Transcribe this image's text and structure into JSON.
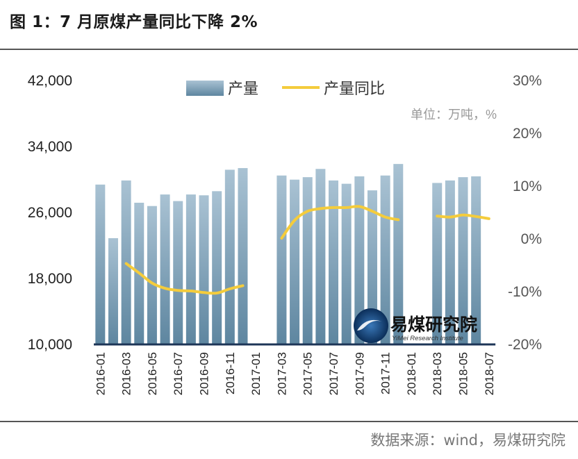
{
  "title": "图 1：7 月原煤产量同比下降 2%",
  "source": "数据来源：wind，易煤研究院",
  "colors": {
    "bar_top": "#a9c2d3",
    "bar_bottom": "#5e86a0",
    "line": "#f4cc3c",
    "baseline": "#1d3557",
    "axis_text": "#222222",
    "secondary_text": "#555555"
  },
  "logo": {
    "name": "易煤研究院",
    "subtitle": "YiMei Research Institute"
  },
  "chart_data": {
    "type": "bar+line",
    "unit": "单位：万吨，%",
    "legend": [
      "产量",
      "产量同比"
    ],
    "y_left": {
      "min": 10000,
      "max": 42000,
      "ticks": [
        "42,000",
        "34,000",
        "26,000",
        "18,000",
        "10,000"
      ],
      "tick_values": [
        42000,
        34000,
        26000,
        18000,
        10000
      ]
    },
    "y_right": {
      "min": -20,
      "max": 30,
      "ticks": [
        "30%",
        "20%",
        "10%",
        "0%",
        "-10%",
        "-20%"
      ],
      "tick_values": [
        30,
        20,
        10,
        0,
        -10,
        -20
      ]
    },
    "x_tick_labels": [
      "2016-01",
      "2016-03",
      "2016-05",
      "2016-07",
      "2016-09",
      "2016-11",
      "2017-01",
      "2017-03",
      "2017-05",
      "2017-07",
      "2017-09",
      "2017-11",
      "2018-01",
      "2018-03",
      "2018-05",
      "2018-07"
    ],
    "categories": [
      "2016-01",
      "2016-02",
      "2016-03",
      "2016-04",
      "2016-05",
      "2016-06",
      "2016-07",
      "2016-08",
      "2016-09",
      "2016-10",
      "2016-11",
      "2016-12",
      "2017-01",
      "2017-02",
      "2017-03",
      "2017-04",
      "2017-05",
      "2017-06",
      "2017-07",
      "2017-08",
      "2017-09",
      "2017-10",
      "2017-11",
      "2017-12",
      "2018-01",
      "2018-02",
      "2018-03",
      "2018-04",
      "2018-05",
      "2018-06",
      "2018-07"
    ],
    "series": [
      {
        "name": "产量",
        "type": "bar",
        "axis": "left",
        "values": [
          29300,
          22800,
          29800,
          27100,
          26700,
          28100,
          27300,
          28100,
          28000,
          28500,
          31100,
          31300,
          null,
          null,
          30400,
          29900,
          30200,
          31200,
          29800,
          29400,
          30300,
          28600,
          30400,
          31800,
          null,
          null,
          29500,
          29800,
          30200,
          30300,
          null
        ]
      },
      {
        "name": "产量同比",
        "type": "line",
        "axis": "right",
        "values": [
          null,
          null,
          -4.8,
          -6.6,
          -8.5,
          -9.5,
          -9.9,
          -10.0,
          -10.3,
          -10.4,
          -9.6,
          -9.0,
          null,
          null,
          0.0,
          3.4,
          5.1,
          5.6,
          5.8,
          5.8,
          6.0,
          5.1,
          4.0,
          3.5,
          null,
          null,
          4.2,
          4.0,
          4.4,
          4.1,
          3.7
        ]
      }
    ]
  }
}
